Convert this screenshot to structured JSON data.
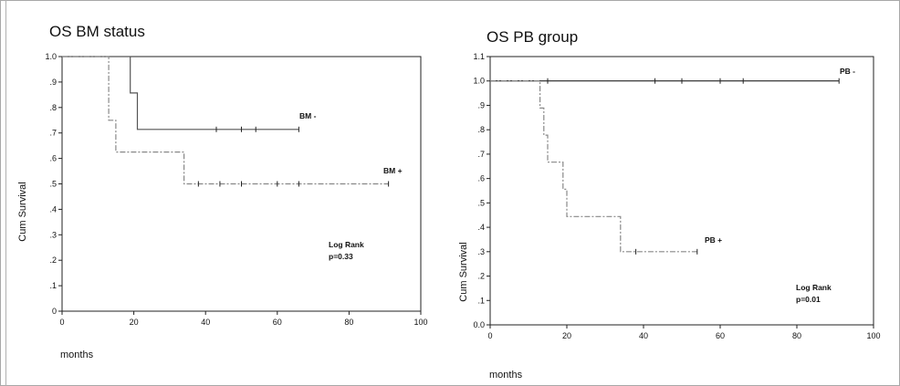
{
  "chart_data": [
    {
      "type": "line",
      "subtype": "kaplan-meier",
      "title": "OS BM status",
      "xlabel": "months",
      "ylabel": "Cum Survival",
      "xlim": [
        0,
        100
      ],
      "ylim": [
        0,
        1.0
      ],
      "xticks": [
        "0",
        "20",
        "40",
        "60",
        "80",
        "100"
      ],
      "yticks": [
        "0",
        ".1",
        ".2",
        ".3",
        ".4",
        ".5",
        ".6",
        ".7",
        ".8",
        ".9",
        "1.0"
      ],
      "grid": false,
      "series": [
        {
          "name": "BM -",
          "steps": [
            [
              0,
              1.0
            ],
            [
              19,
              1.0
            ],
            [
              19,
              0.857
            ],
            [
              21,
              0.857
            ],
            [
              21,
              0.714
            ],
            [
              66,
              0.714
            ]
          ],
          "censored": [
            [
              43,
              0.714
            ],
            [
              50,
              0.714
            ],
            [
              54,
              0.714
            ],
            [
              66,
              0.714
            ]
          ],
          "color": "#555555"
        },
        {
          "name": "BM +",
          "steps": [
            [
              0,
              1.0
            ],
            [
              13,
              1.0
            ],
            [
              13,
              0.75
            ],
            [
              15,
              0.75
            ],
            [
              15,
              0.625
            ],
            [
              34,
              0.625
            ],
            [
              34,
              0.5
            ],
            [
              91,
              0.5
            ]
          ],
          "censored": [
            [
              38,
              0.5
            ],
            [
              44,
              0.5
            ],
            [
              50,
              0.5
            ],
            [
              60,
              0.5
            ],
            [
              66,
              0.5
            ],
            [
              91,
              0.5
            ]
          ],
          "color": "#888888"
        }
      ],
      "annotation": {
        "line1": "Log Rank",
        "line2": "p=0.33"
      }
    },
    {
      "type": "line",
      "subtype": "kaplan-meier",
      "title": "OS PB group",
      "xlabel": "months",
      "ylabel": "Cum Survival",
      "xlim": [
        0,
        100
      ],
      "ylim": [
        0,
        1.1
      ],
      "xticks": [
        "0",
        "20",
        "40",
        "60",
        "80",
        "100"
      ],
      "yticks": [
        "0.0",
        ".1",
        ".2",
        ".3",
        ".4",
        ".5",
        ".6",
        ".7",
        ".8",
        ".9",
        "1.0",
        "1.1"
      ],
      "grid": false,
      "series": [
        {
          "name": "PB -",
          "steps": [
            [
              0,
              1.0
            ],
            [
              91,
              1.0
            ]
          ],
          "censored": [
            [
              15,
              1.0
            ],
            [
              43,
              1.0
            ],
            [
              50,
              1.0
            ],
            [
              60,
              1.0
            ],
            [
              66,
              1.0
            ],
            [
              91,
              1.0
            ]
          ],
          "color": "#222222"
        },
        {
          "name": "PB +",
          "steps": [
            [
              0,
              1.0
            ],
            [
              13,
              1.0
            ],
            [
              13,
              0.889
            ],
            [
              14,
              0.889
            ],
            [
              14,
              0.778
            ],
            [
              15,
              0.778
            ],
            [
              15,
              0.667
            ],
            [
              19,
              0.667
            ],
            [
              19,
              0.556
            ],
            [
              20,
              0.556
            ],
            [
              20,
              0.444
            ],
            [
              34,
              0.444
            ],
            [
              34,
              0.3
            ],
            [
              54,
              0.3
            ]
          ],
          "censored": [
            [
              38,
              0.3
            ],
            [
              54,
              0.3
            ]
          ],
          "color": "#888888"
        }
      ],
      "annotation": {
        "line1": "Log Rank",
        "line2": "p=0.01"
      }
    }
  ]
}
